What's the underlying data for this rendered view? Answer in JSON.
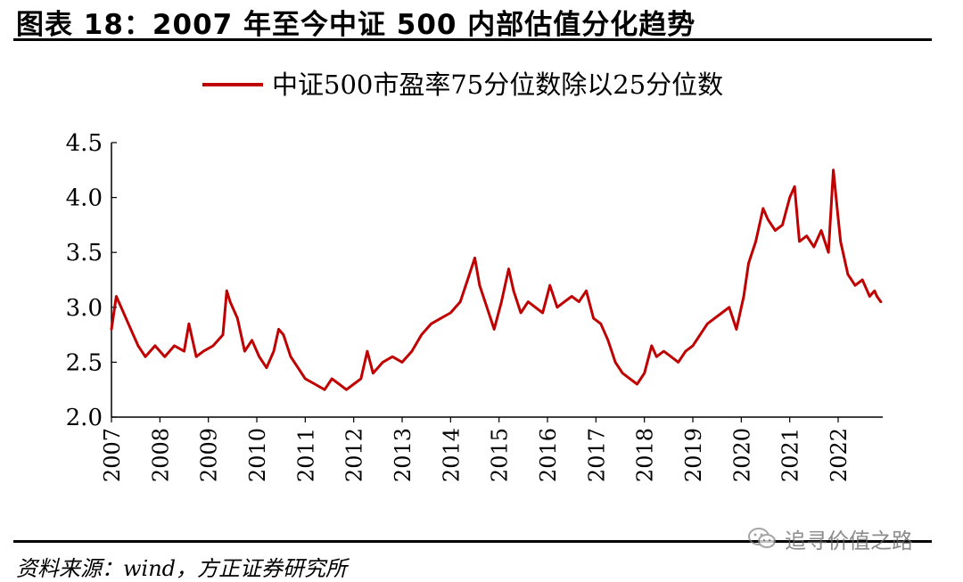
{
  "figure": {
    "title": "图表 18：2007 年至今中证 500 内部估值分化趋势",
    "source": "资料来源：wind，方正证券研究所",
    "watermark": "追寻价值之路",
    "watermark_icon": "wechat-icon"
  },
  "chart_data": {
    "type": "line",
    "title": "",
    "xlabel": "",
    "ylabel": "",
    "ylim": [
      2.0,
      4.5
    ],
    "yticks": [
      "2.0",
      "2.5",
      "3.0",
      "3.5",
      "4.0",
      "4.5"
    ],
    "xticks": [
      "2007",
      "2008",
      "2009",
      "2010",
      "2011",
      "2012",
      "2013",
      "2014",
      "2015",
      "2016",
      "2017",
      "2018",
      "2019",
      "2020",
      "2021",
      "2022"
    ],
    "grid": false,
    "legend": "top-center",
    "series": [
      {
        "name": "中证500市盈率75分位数除以25分位数",
        "color": "#c00000",
        "x": [
          2007.0,
          2007.1,
          2007.2,
          2007.35,
          2007.55,
          2007.7,
          2007.9,
          2008.1,
          2008.3,
          2008.5,
          2008.6,
          2008.75,
          2008.9,
          2009.1,
          2009.3,
          2009.38,
          2009.45,
          2009.6,
          2009.75,
          2009.9,
          2010.05,
          2010.2,
          2010.35,
          2010.45,
          2010.55,
          2010.7,
          2010.85,
          2011.0,
          2011.2,
          2011.4,
          2011.55,
          2011.7,
          2011.85,
          2012.0,
          2012.15,
          2012.28,
          2012.4,
          2012.6,
          2012.8,
          2013.0,
          2013.2,
          2013.4,
          2013.6,
          2013.8,
          2014.0,
          2014.2,
          2014.35,
          2014.5,
          2014.6,
          2014.75,
          2014.9,
          2015.05,
          2015.2,
          2015.3,
          2015.45,
          2015.6,
          2015.75,
          2015.9,
          2016.05,
          2016.2,
          2016.35,
          2016.5,
          2016.65,
          2016.8,
          2016.95,
          2017.1,
          2017.25,
          2017.4,
          2017.55,
          2017.7,
          2017.85,
          2018.0,
          2018.15,
          2018.25,
          2018.4,
          2018.55,
          2018.7,
          2018.85,
          2019.0,
          2019.15,
          2019.3,
          2019.45,
          2019.6,
          2019.75,
          2019.9,
          2020.05,
          2020.15,
          2020.3,
          2020.45,
          2020.55,
          2020.7,
          2020.85,
          2021.0,
          2021.1,
          2021.2,
          2021.35,
          2021.5,
          2021.65,
          2021.8,
          2021.9,
          2021.98,
          2022.05,
          2022.2,
          2022.35,
          2022.5,
          2022.65,
          2022.75,
          2022.8,
          2022.88
        ],
        "values": [
          2.8,
          3.1,
          3.0,
          2.85,
          2.65,
          2.55,
          2.65,
          2.55,
          2.65,
          2.6,
          2.85,
          2.55,
          2.6,
          2.65,
          2.75,
          3.15,
          3.05,
          2.9,
          2.6,
          2.7,
          2.55,
          2.45,
          2.6,
          2.8,
          2.75,
          2.55,
          2.45,
          2.35,
          2.3,
          2.25,
          2.35,
          2.3,
          2.25,
          2.3,
          2.35,
          2.6,
          2.4,
          2.5,
          2.55,
          2.5,
          2.6,
          2.75,
          2.85,
          2.9,
          2.95,
          3.05,
          3.25,
          3.45,
          3.2,
          3.0,
          2.8,
          3.05,
          3.35,
          3.15,
          2.95,
          3.05,
          3.0,
          2.95,
          3.2,
          3.0,
          3.05,
          3.1,
          3.05,
          3.15,
          2.9,
          2.85,
          2.7,
          2.5,
          2.4,
          2.35,
          2.3,
          2.4,
          2.65,
          2.55,
          2.6,
          2.55,
          2.5,
          2.6,
          2.65,
          2.75,
          2.85,
          2.9,
          2.95,
          3.0,
          2.8,
          3.1,
          3.4,
          3.6,
          3.9,
          3.8,
          3.7,
          3.75,
          4.0,
          4.1,
          3.6,
          3.65,
          3.55,
          3.7,
          3.5,
          4.25,
          3.9,
          3.6,
          3.3,
          3.2,
          3.25,
          3.1,
          3.15,
          3.1,
          3.05
        ]
      }
    ]
  }
}
